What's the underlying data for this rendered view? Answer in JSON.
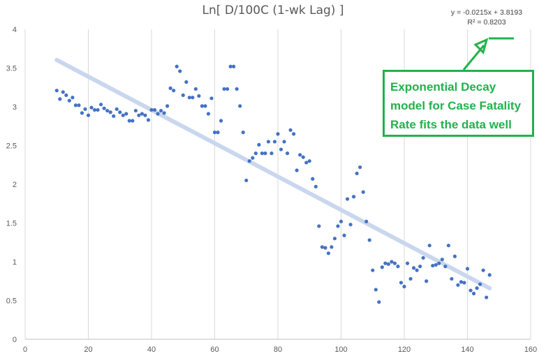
{
  "chart_data": {
    "type": "scatter",
    "title": "Ln[ D/100C (1-wk Lag) ]",
    "xlabel": "",
    "ylabel": "",
    "xlim": [
      0,
      160
    ],
    "ylim": [
      0,
      4
    ],
    "x_ticks": [
      "0",
      "20",
      "40",
      "60",
      "80",
      "100",
      "120",
      "140",
      "160"
    ],
    "y_ticks": [
      "0",
      "0.5",
      "1",
      "1.5",
      "2",
      "2.5",
      "3",
      "3.5",
      "4"
    ],
    "grid": "vertical",
    "series": [
      {
        "color": "#4472c4",
        "points": [
          [
            10,
            3.21
          ],
          [
            11,
            3.1
          ],
          [
            12,
            3.19
          ],
          [
            13,
            3.15
          ],
          [
            14,
            3.08
          ],
          [
            15,
            3.12
          ],
          [
            16,
            3.02
          ],
          [
            17,
            3.02
          ],
          [
            18,
            2.92
          ],
          [
            19,
            2.97
          ],
          [
            20,
            2.89
          ],
          [
            21,
            2.99
          ],
          [
            22,
            2.96
          ],
          [
            23,
            2.96
          ],
          [
            24,
            3.03
          ],
          [
            25,
            2.98
          ],
          [
            26,
            2.95
          ],
          [
            27,
            2.93
          ],
          [
            28,
            2.88
          ],
          [
            29,
            2.97
          ],
          [
            30,
            2.93
          ],
          [
            31,
            2.89
          ],
          [
            32,
            2.91
          ],
          [
            33,
            2.82
          ],
          [
            34,
            2.82
          ],
          [
            35,
            2.95
          ],
          [
            36,
            2.89
          ],
          [
            37,
            2.91
          ],
          [
            38,
            2.89
          ],
          [
            39,
            2.83
          ],
          [
            40,
            2.96
          ],
          [
            41,
            2.96
          ],
          [
            42,
            2.91
          ],
          [
            43,
            2.95
          ],
          [
            44,
            2.92
          ],
          [
            45,
            3.01
          ],
          [
            46,
            3.24
          ],
          [
            47,
            3.21
          ],
          [
            48,
            3.52
          ],
          [
            49,
            3.46
          ],
          [
            50,
            3.15
          ],
          [
            51,
            3.32
          ],
          [
            52,
            3.12
          ],
          [
            53,
            3.12
          ],
          [
            54,
            3.23
          ],
          [
            55,
            3.14
          ],
          [
            56,
            3.01
          ],
          [
            57,
            3.01
          ],
          [
            58,
            2.91
          ],
          [
            59,
            3.11
          ],
          [
            60,
            2.67
          ],
          [
            61,
            2.67
          ],
          [
            62,
            2.82
          ],
          [
            63,
            3.23
          ],
          [
            64,
            3.23
          ],
          [
            65,
            3.52
          ],
          [
            66,
            3.52
          ],
          [
            67,
            3.23
          ],
          [
            68,
            3.01
          ],
          [
            69,
            2.67
          ],
          [
            70,
            2.05
          ],
          [
            71,
            2.3
          ],
          [
            72,
            2.34
          ],
          [
            73,
            2.4
          ],
          [
            74,
            2.51
          ],
          [
            75,
            2.4
          ],
          [
            76,
            2.4
          ],
          [
            77,
            2.55
          ],
          [
            78,
            2.4
          ],
          [
            79,
            2.55
          ],
          [
            80,
            2.65
          ],
          [
            81,
            2.45
          ],
          [
            82,
            2.55
          ],
          [
            83,
            2.4
          ],
          [
            84,
            2.7
          ],
          [
            85,
            2.65
          ],
          [
            86,
            2.18
          ],
          [
            87,
            2.38
          ],
          [
            88,
            2.35
          ],
          [
            89,
            2.28
          ],
          [
            90,
            2.3
          ],
          [
            91,
            2.07
          ],
          [
            92,
            1.97
          ],
          [
            93,
            1.46
          ],
          [
            94,
            1.19
          ],
          [
            95,
            1.18
          ],
          [
            96,
            1.11
          ],
          [
            97,
            1.19
          ],
          [
            98,
            1.3
          ],
          [
            99,
            1.46
          ],
          [
            100,
            1.52
          ],
          [
            101,
            1.34
          ],
          [
            102,
            1.81
          ],
          [
            103,
            1.48
          ],
          [
            104,
            1.84
          ],
          [
            105,
            2.14
          ],
          [
            106,
            2.22
          ],
          [
            107,
            1.9
          ],
          [
            108,
            1.52
          ],
          [
            109,
            1.28
          ],
          [
            110,
            0.89
          ],
          [
            111,
            0.64
          ],
          [
            112,
            0.48
          ],
          [
            113,
            0.93
          ],
          [
            114,
            0.98
          ],
          [
            115,
            0.97
          ],
          [
            116,
            1.0
          ],
          [
            117,
            0.98
          ],
          [
            118,
            0.94
          ],
          [
            119,
            0.73
          ],
          [
            120,
            0.68
          ],
          [
            121,
            0.98
          ],
          [
            122,
            0.78
          ],
          [
            123,
            0.92
          ],
          [
            124,
            0.89
          ],
          [
            125,
            0.94
          ],
          [
            126,
            1.05
          ],
          [
            127,
            0.75
          ],
          [
            128,
            1.21
          ],
          [
            129,
            0.95
          ],
          [
            130,
            0.96
          ],
          [
            131,
            0.98
          ],
          [
            132,
            1.03
          ],
          [
            133,
            0.94
          ],
          [
            134,
            1.21
          ],
          [
            135,
            0.78
          ],
          [
            136,
            1.07
          ],
          [
            137,
            0.7
          ],
          [
            138,
            0.74
          ],
          [
            139,
            0.73
          ],
          [
            140,
            0.91
          ],
          [
            141,
            0.63
          ],
          [
            142,
            0.59
          ],
          [
            143,
            0.66
          ],
          [
            144,
            0.71
          ],
          [
            145,
            0.89
          ],
          [
            146,
            0.54
          ],
          [
            147,
            0.83
          ]
        ]
      }
    ],
    "trendline": {
      "type": "linear",
      "slope": -0.0215,
      "intercept": 3.8193,
      "x_range": [
        10,
        147
      ],
      "color": "#c9d7ee",
      "equation": "y = -0.0215x + 3.8193",
      "r_squared": "R² = 0.8203"
    }
  },
  "annotation": {
    "lines": [
      "Exponential Decay",
      "model for Case Fatality",
      "Rate fits the data well"
    ],
    "color": "#22b14c"
  }
}
